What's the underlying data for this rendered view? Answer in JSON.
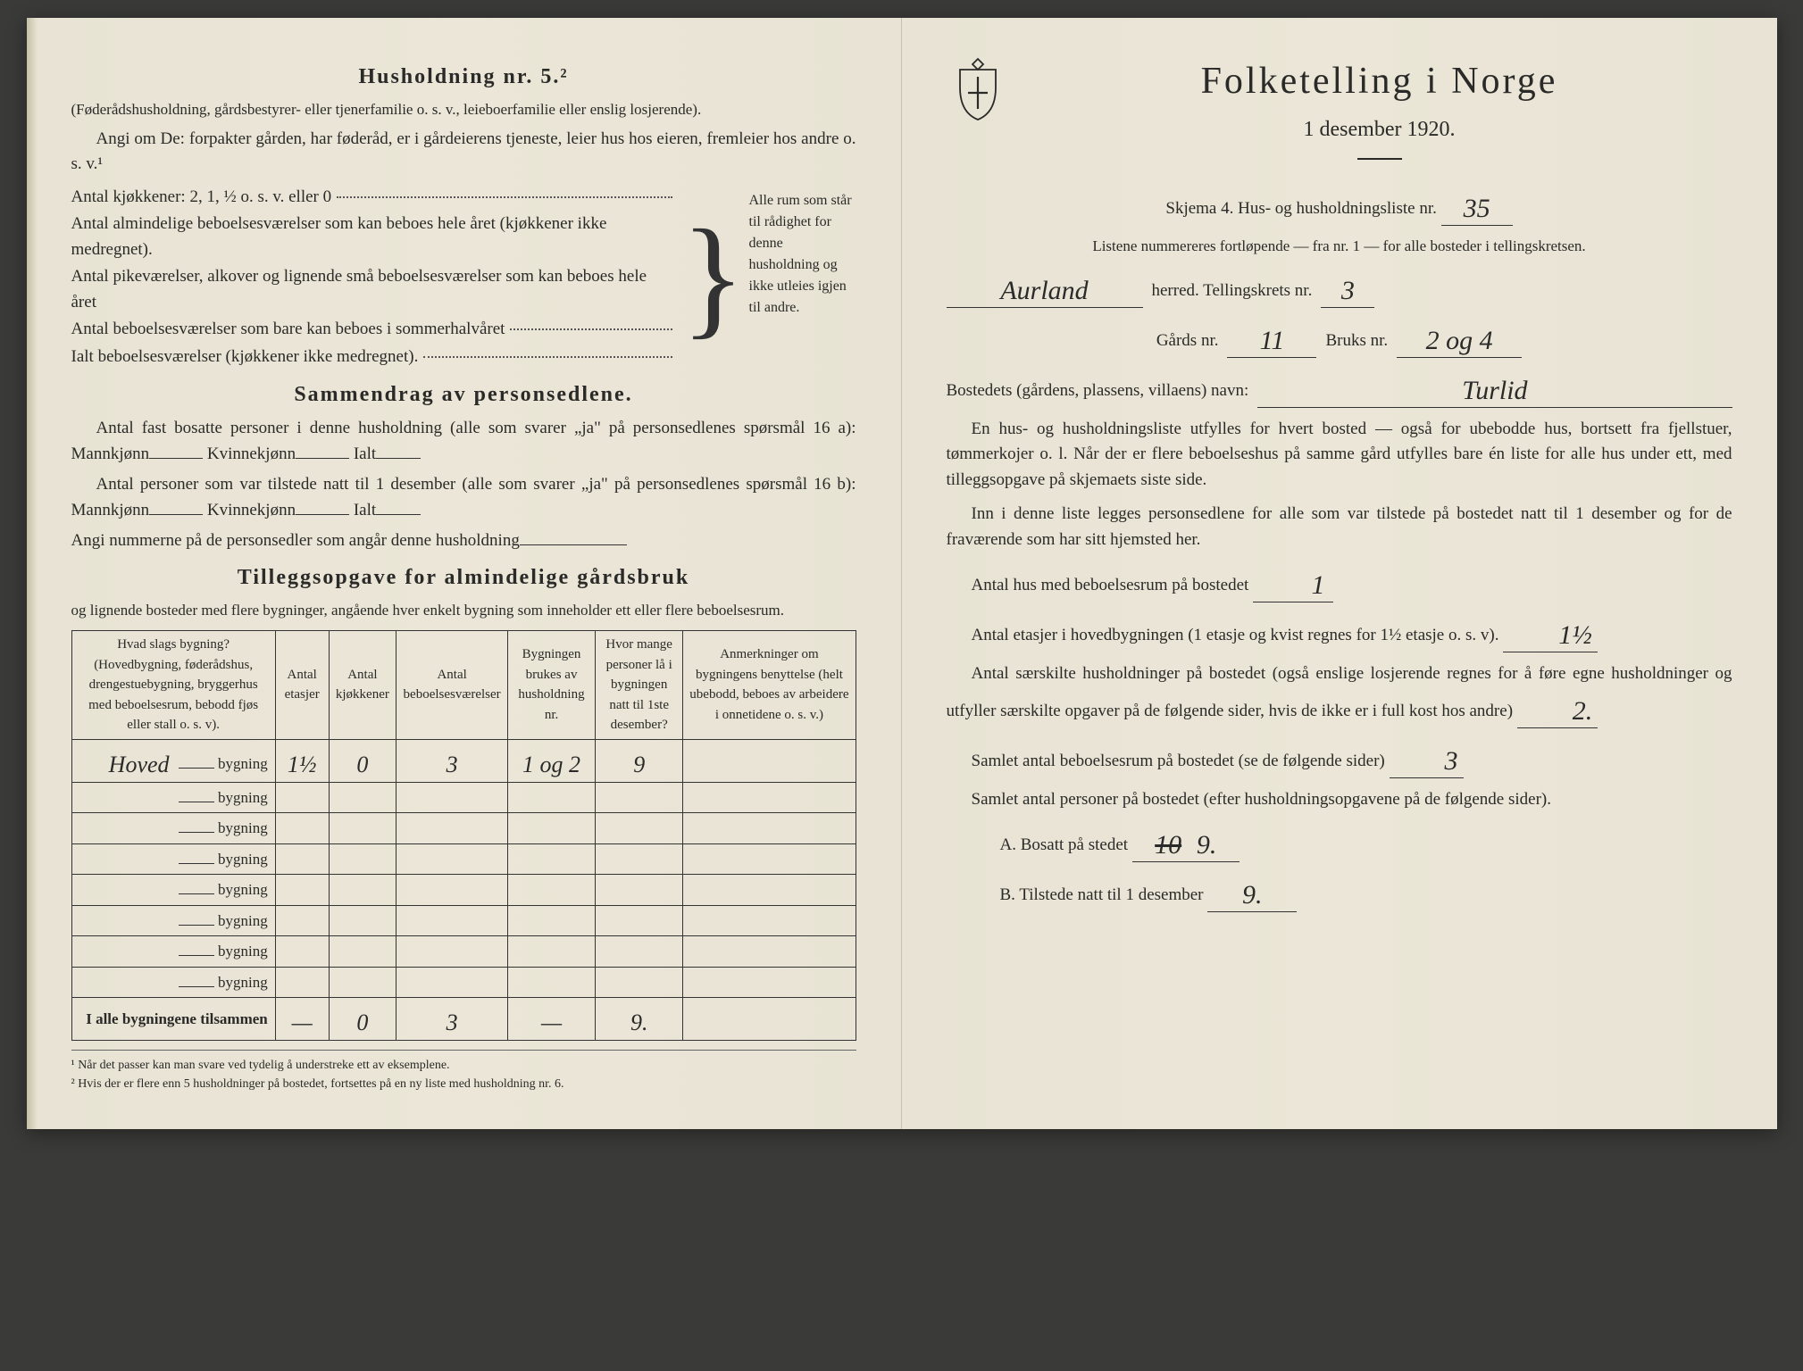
{
  "left": {
    "heading": "Husholdning nr. 5.²",
    "intro1": "(Føderådshusholdning, gårdsbestyrer- eller tjenerfamilie o. s. v., leieboerfamilie eller enslig losjerende).",
    "intro2": "Angi om De: forpakter gården, har føderåd, er i gårdeierens tjeneste, leier hus hos eieren, fremleier hos andre o. s. v.¹",
    "kitchens_label": "Antal kjøkkener: 2, 1, ½ o. s. v. eller 0",
    "rooms": [
      "Antal almindelige beboelsesværelser som kan beboes hele året (kjøkkener ikke medregnet).",
      "Antal pikeværelser, alkover og lignende små beboelsesværelser som kan beboes hele året",
      "Antal beboelsesværelser som bare kan beboes i sommerhalvåret",
      "Ialt beboelsesværelser (kjøkkener ikke medregnet)."
    ],
    "brace_text": "Alle rum som står til rådighet for denne husholdning og ikke utleies igjen til andre.",
    "summary_heading": "Sammendrag av personsedlene.",
    "summary1": "Antal fast bosatte personer i denne husholdning (alle som svarer „ja\" på personsedlenes spørsmål 16 a): Mannkjønn",
    "kvinne": "Kvinnekjønn",
    "ialt": "Ialt",
    "summary2": "Antal personer som var tilstede natt til 1 desember (alle som svarer „ja\" på personsedlenes spørsmål 16 b): Mannkjønn",
    "summary3": "Angi nummerne på de personsedler som angår denne husholdning",
    "tillegg_heading": "Tilleggsopgave for almindelige gårdsbruk",
    "tillegg_text": "og lignende bosteder med flere bygninger, angående hver enkelt bygning som inneholder ett eller flere beboelsesrum.",
    "table": {
      "headers": [
        "Hvad slags bygning?\n(Hovedbygning, føderådshus, drengestuebygning, bryggerhus med beboelsesrum, bebodd fjøs eller stall o. s. v).",
        "Antal etasjer",
        "Antal kjøkkener",
        "Antal beboelsesværelser",
        "Bygningen brukes av husholdning nr.",
        "Hvor mange personer lå i bygningen natt til 1ste desember?",
        "Anmerkninger om bygningens benyttelse (helt ubebodd, beboes av arbeidere i onnetidene o. s. v.)"
      ],
      "rows": [
        {
          "label": "Hoved",
          "suffix": "bygning",
          "etasjer": "1½",
          "kjokken": "0",
          "beboelse": "3",
          "husholdning": "1 og 2",
          "personer": "9",
          "anm": ""
        },
        {
          "label": "",
          "suffix": "bygning"
        },
        {
          "label": "",
          "suffix": "bygning"
        },
        {
          "label": "",
          "suffix": "bygning"
        },
        {
          "label": "",
          "suffix": "bygning"
        },
        {
          "label": "",
          "suffix": "bygning"
        },
        {
          "label": "",
          "suffix": "bygning"
        },
        {
          "label": "",
          "suffix": "bygning"
        }
      ],
      "totals_label": "I alle bygningene tilsammen",
      "totals": [
        "—",
        "0",
        "3",
        "—",
        "9.",
        ""
      ]
    },
    "footnote1": "¹ Når det passer kan man svare ved tydelig å understreke ett av eksemplene.",
    "footnote2": "² Hvis der er flere enn 5 husholdninger på bostedet, fortsettes på en ny liste med husholdning nr. 6."
  },
  "right": {
    "title": "Folketelling i Norge",
    "date": "1 desember 1920.",
    "skjema": "Skjema 4.  Hus- og husholdningsliste nr.",
    "liste_nr": "35",
    "listene": "Listene nummereres fortløpende — fra nr. 1 — for alle bosteder i tellingskretsen.",
    "herred_value": "Aurland",
    "herred_label": "herred.  Tellingskrets nr.",
    "tellingskrets": "3",
    "gards_label": "Gårds nr.",
    "gards_nr": "11",
    "bruks_label": "Bruks nr.",
    "bruks_nr": "2 og 4",
    "bosted_label": "Bostedets (gårdens, plassens, villaens) navn:",
    "bosted_value": "Turlid",
    "para1": "En hus- og husholdningsliste utfylles for hvert bosted — også for ubebodde hus, bortsett fra fjellstuer, tømmerkojer o. l.  Når der er flere beboelseshus på samme gård utfylles bare én liste for alle hus under ett, med tilleggsopgave på skjemaets siste side.",
    "para2": "Inn i denne liste legges personsedlene for alle som var tilstede på bostedet natt til 1 desember og for de fraværende som har sitt hjemsted her.",
    "q1": "Antal hus med beboelsesrum på bostedet",
    "q1_val": "1",
    "q2a": "Antal etasjer i hovedbygningen (1 etasje og kvist regnes for 1½ etasje o. s. v).",
    "q2_val": "1½",
    "q3": "Antal særskilte husholdninger på bostedet (også enslige losjerende regnes for å føre egne husholdninger og utfyller særskilte opgaver på de følgende sider, hvis de ikke er i full kost hos andre)",
    "q3_val": "2.",
    "q4": "Samlet antal beboelsesrum på bostedet (se de følgende sider)",
    "q4_val": "3",
    "q5": "Samlet antal personer på bostedet (efter husholdningsopgavene på de følgende sider).",
    "qA": "A.  Bosatt på stedet",
    "qA_val": "10",
    "qA_val2": "9.",
    "qB": "B.  Tilstede natt til 1 desember",
    "qB_val": "9."
  }
}
